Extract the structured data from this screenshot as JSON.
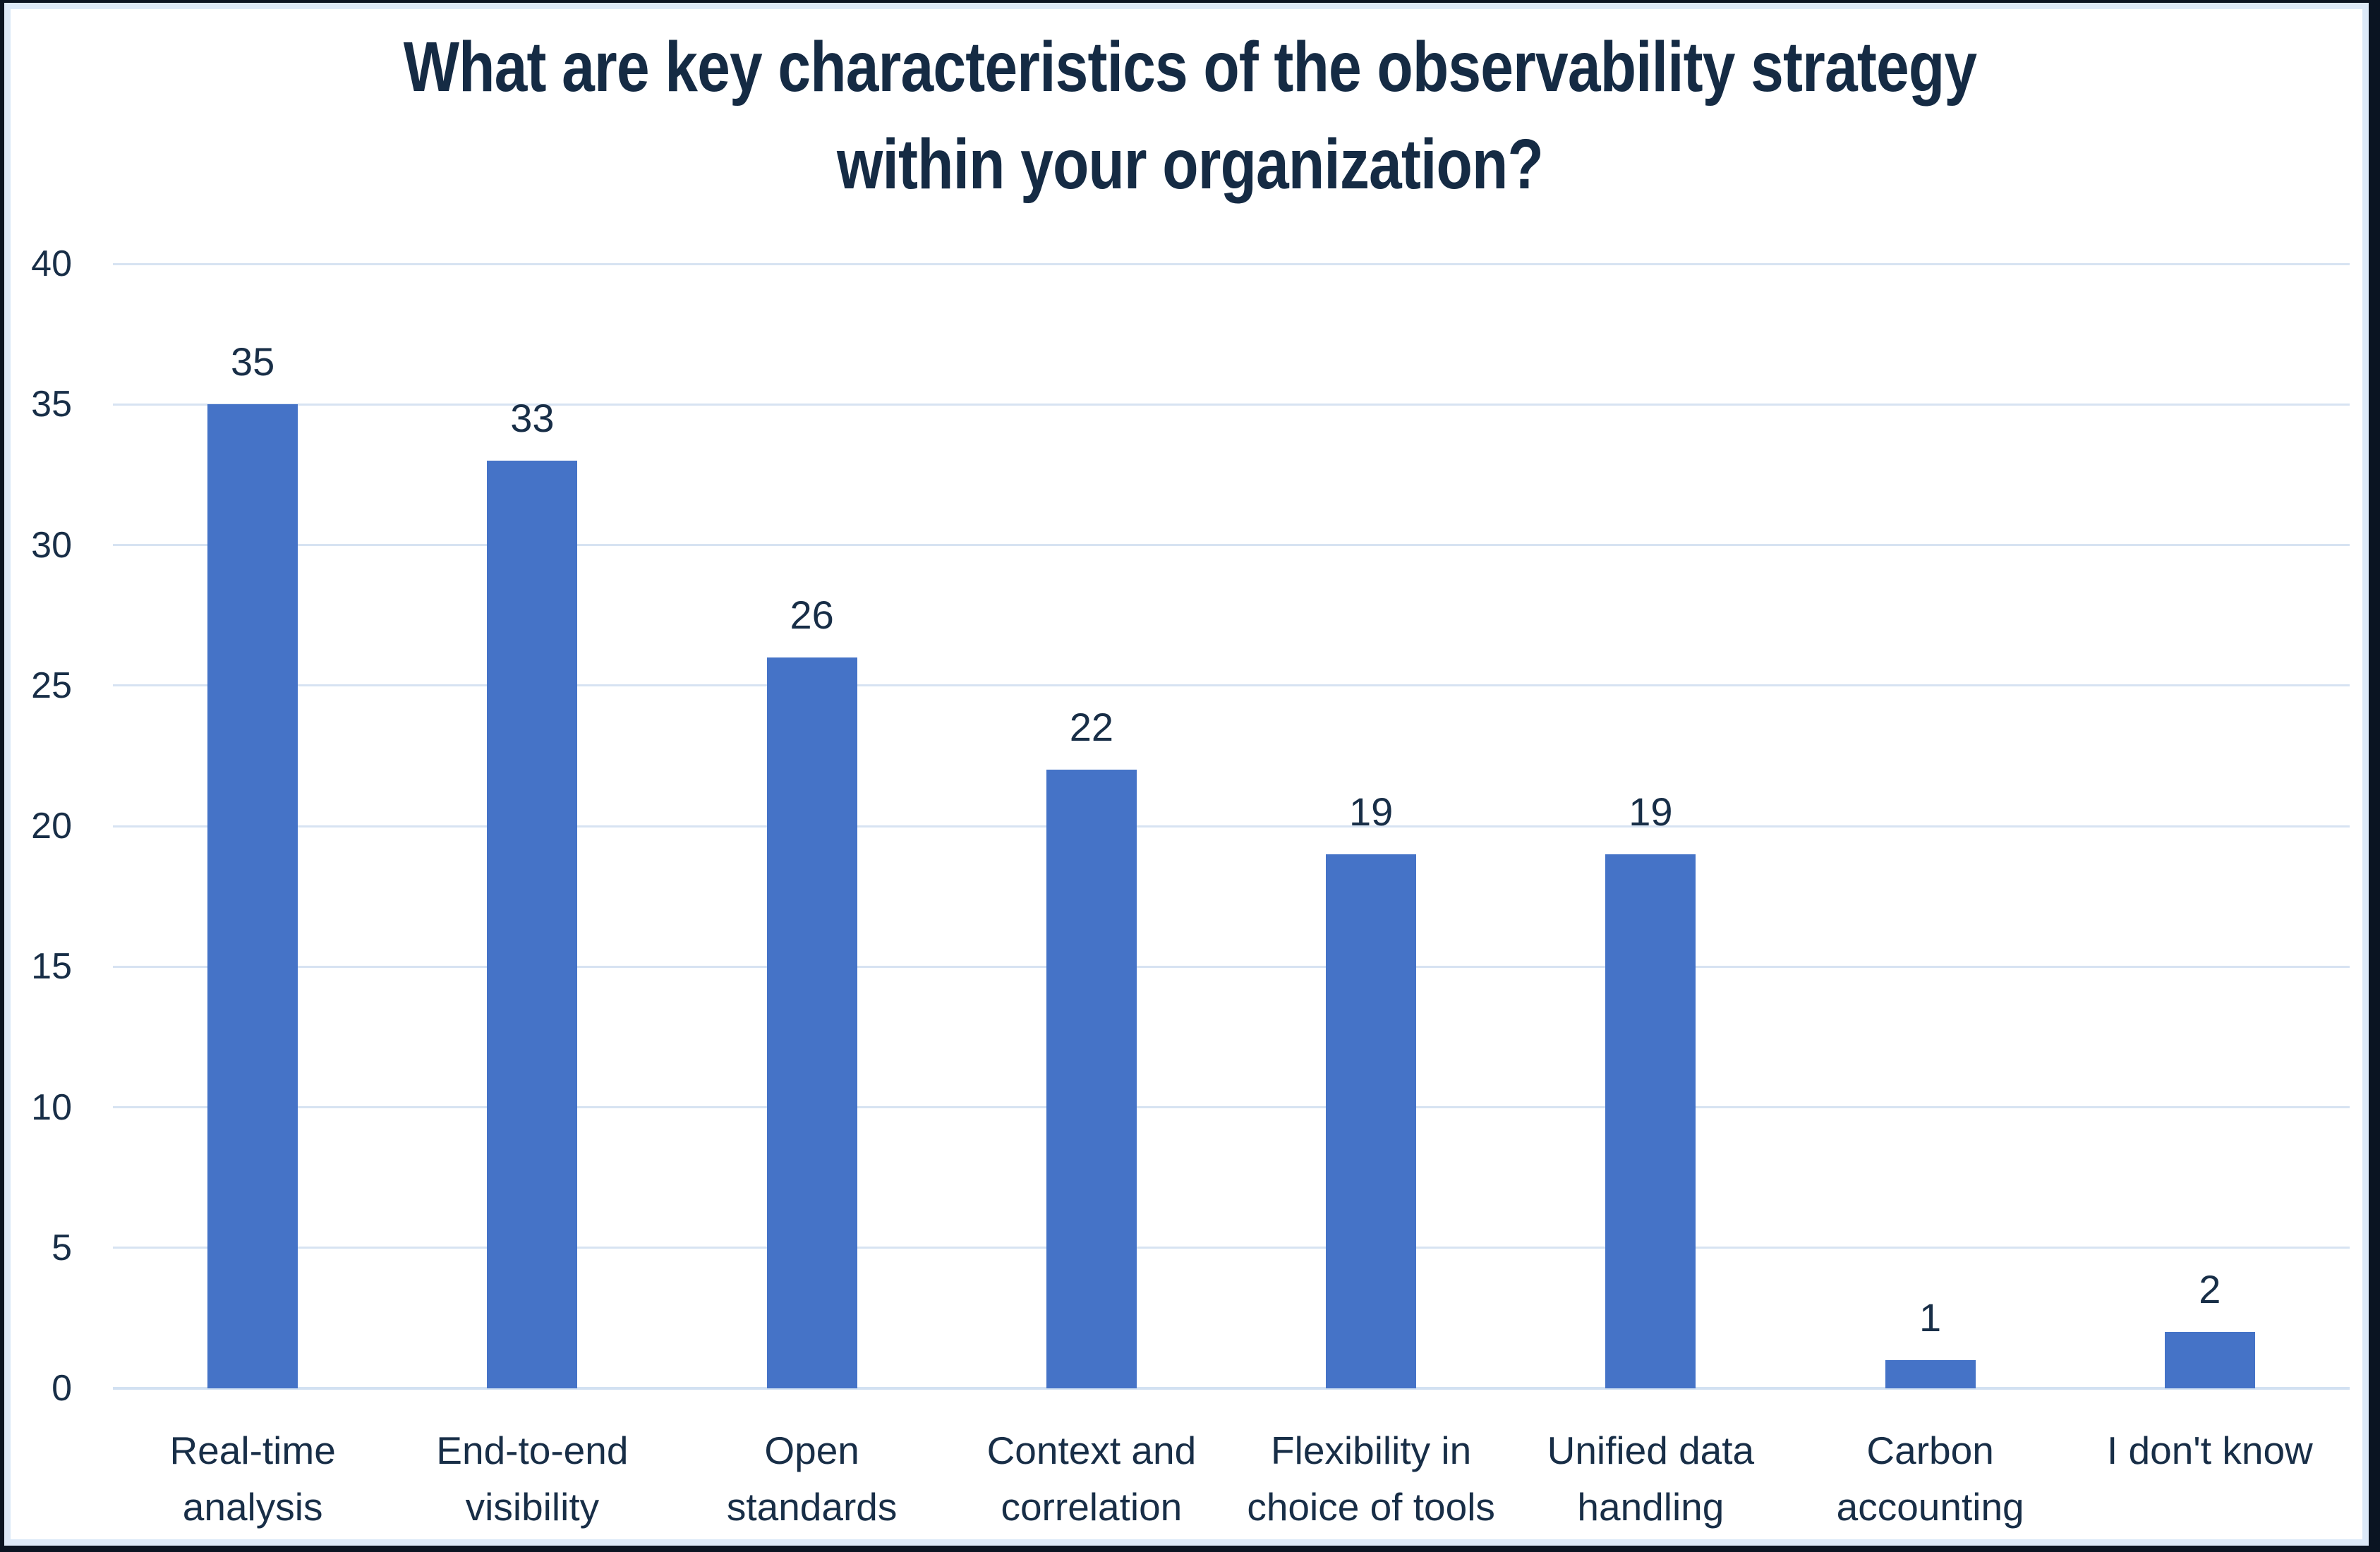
{
  "chart_data": {
    "type": "bar",
    "title": "What are key characteristics of the observability strategy within your organization?",
    "title_lines": [
      "What are key characteristics of the observability strategy",
      "within your organization?"
    ],
    "categories": [
      "Real-time analysis",
      "End-to-end visibility",
      "Open standards",
      "Context and correlation",
      "Flexibility in choice of tools",
      "Unified data handling",
      "Carbon accounting",
      "I don't know"
    ],
    "category_label_lines": [
      [
        "Real-time",
        "analysis"
      ],
      [
        "End-to-end",
        "visibility"
      ],
      [
        "Open",
        "standards"
      ],
      [
        "Context and",
        "correlation"
      ],
      [
        "Flexibility in",
        "choice of tools"
      ],
      [
        "Unified data",
        "handling"
      ],
      [
        "Carbon",
        "accounting"
      ],
      [
        "I don't know"
      ]
    ],
    "values": [
      35,
      33,
      26,
      22,
      19,
      19,
      1,
      2
    ],
    "y_ticks": [
      0,
      5,
      10,
      15,
      20,
      25,
      30,
      35,
      40
    ],
    "ylim": [
      0,
      40
    ],
    "xlabel": "",
    "ylabel": "",
    "grid": true,
    "legend": false,
    "data_labels_shown": true,
    "colors": {
      "bar": "#4573C7",
      "text": "#182E47",
      "title_text": "#152B44",
      "gridline": "#D7E3F2",
      "axis_line": "#D2E1F2",
      "plot_border": "#DCE9F8",
      "frame": "#0A1422",
      "background": "#FFFFFF"
    }
  }
}
